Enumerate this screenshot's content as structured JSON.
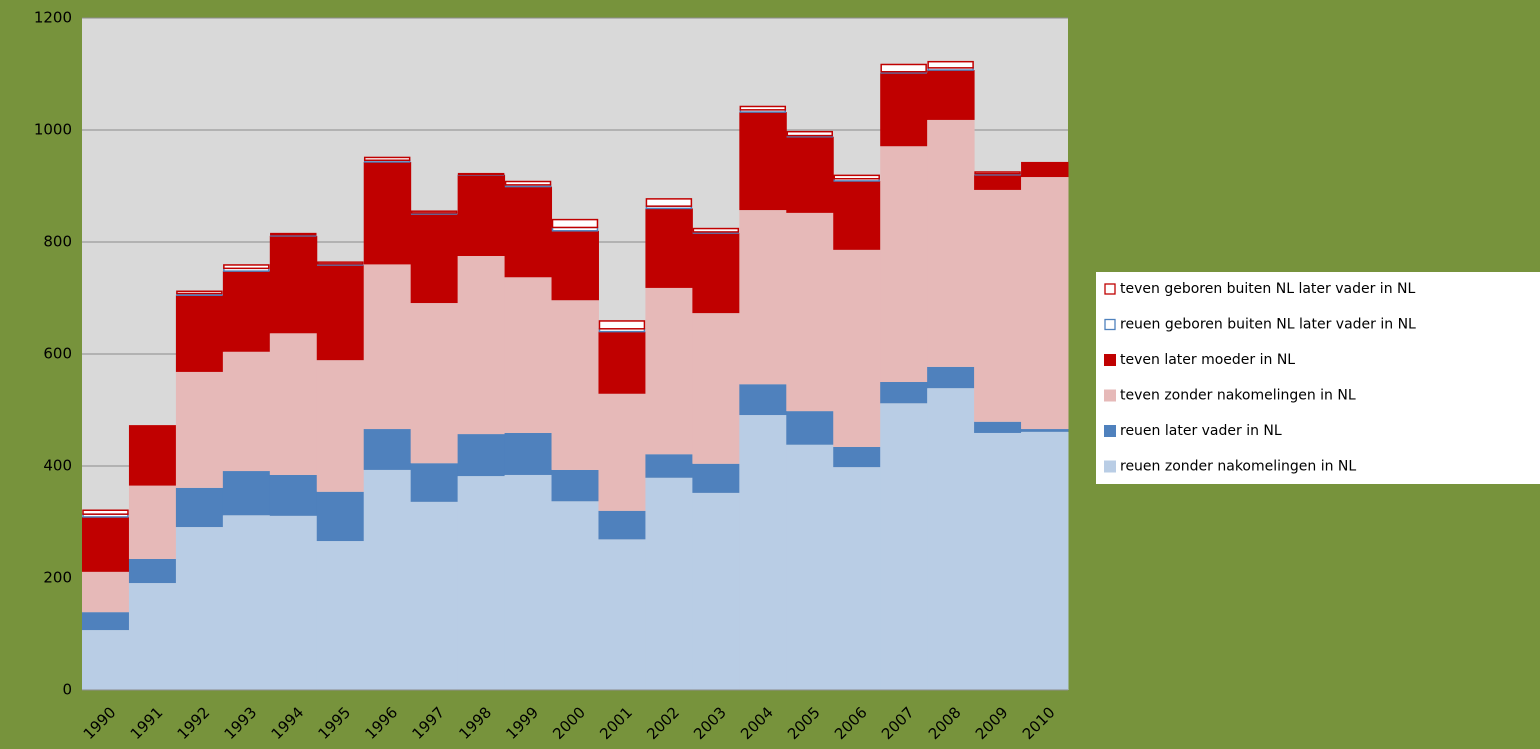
{
  "chart_data": {
    "type": "stacked_bar",
    "categories": [
      "1990",
      "1991",
      "1992",
      "1993",
      "1994",
      "1995",
      "1996",
      "1997",
      "1998",
      "1999",
      "2000",
      "2001",
      "2002",
      "2003",
      "2004",
      "2005",
      "2006",
      "2007",
      "2008",
      "2009",
      "2010"
    ],
    "series": [
      {
        "name": "reuen zonder nakomelingen in NL",
        "color": "#b9cde5",
        "style": "solid",
        "values": [
          107,
          191,
          291,
          312,
          311,
          266,
          393,
          336,
          382,
          384,
          337,
          269,
          379,
          352,
          491,
          438,
          398,
          512,
          539,
          459,
          461
        ]
      },
      {
        "name": "reuen later vader in NL",
        "color": "#4f81bd",
        "style": "solid",
        "values": [
          32,
          43,
          70,
          79,
          73,
          88,
          73,
          69,
          75,
          75,
          56,
          51,
          42,
          52,
          55,
          60,
          36,
          38,
          38,
          20,
          5
        ]
      },
      {
        "name": "teven zonder nakomelingen in NL",
        "color": "#e6b9b8",
        "style": "solid",
        "values": [
          72,
          131,
          207,
          213,
          253,
          235,
          294,
          286,
          318,
          278,
          303,
          209,
          297,
          269,
          311,
          354,
          352,
          421,
          441,
          414,
          450
        ]
      },
      {
        "name": "teven later moeder in NL",
        "color": "#c00000",
        "style": "solid",
        "values": [
          98,
          108,
          137,
          144,
          174,
          170,
          183,
          159,
          145,
          162,
          124,
          111,
          142,
          143,
          175,
          136,
          123,
          131,
          89,
          27,
          27
        ]
      },
      {
        "name": "reuen geboren buiten NL later vader in NL",
        "color": "#4f81bd",
        "style": "outline",
        "values": [
          5,
          0,
          3,
          5,
          2,
          2,
          3,
          2,
          1,
          3,
          6,
          5,
          4,
          2,
          4,
          2,
          4,
          2,
          4,
          2,
          0
        ]
      },
      {
        "name": "teven geboren buiten NL later vader in NL",
        "color": "#c00000",
        "style": "outline",
        "values": [
          7,
          0,
          4,
          6,
          2,
          3,
          5,
          3,
          1,
          6,
          14,
          14,
          13,
          6,
          6,
          7,
          6,
          13,
          11,
          3,
          0
        ]
      }
    ],
    "ylim": [
      0,
      1200
    ],
    "yticks": [
      0,
      200,
      400,
      600,
      800,
      1000,
      1200
    ],
    "grid": true,
    "legend": "right"
  }
}
